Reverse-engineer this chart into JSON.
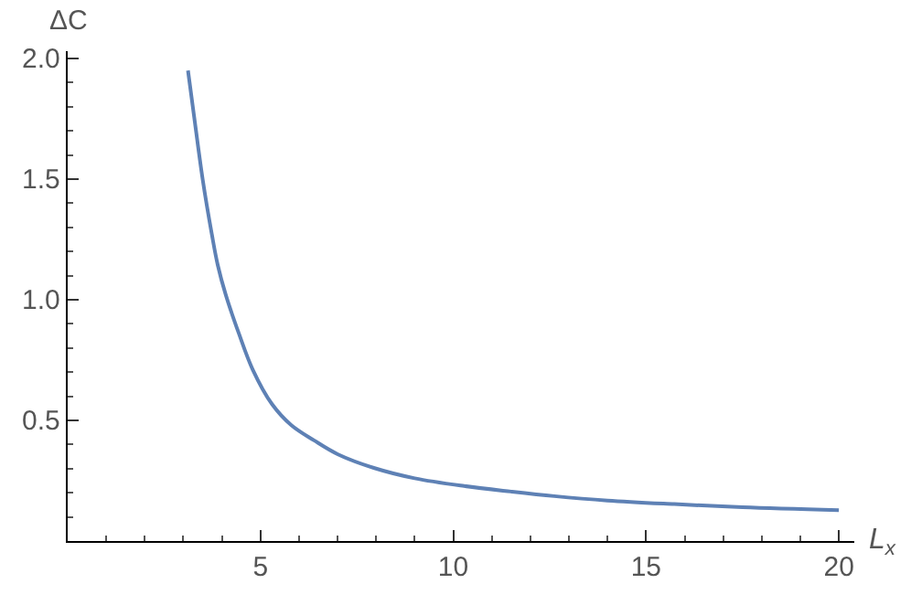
{
  "chart_data": {
    "type": "line",
    "xlabel": "L$_{x}$",
    "ylabel": "ΔC",
    "x": [
      3.12,
      3.27,
      3.5,
      3.74,
      3.89,
      4.1,
      4.44,
      4.8,
      5.3,
      5.8,
      6.39,
      7,
      7.94,
      9,
      10.28,
      11.5,
      12.62,
      14,
      15.73,
      17.5,
      20
    ],
    "series": [
      {
        "color": "#5e81b5",
        "values": [
          1.95,
          1.77,
          1.5,
          1.27,
          1.145,
          1.02,
          0.86,
          0.71,
          0.567,
          0.48,
          0.417,
          0.36,
          0.303,
          0.26,
          0.228,
          0.205,
          0.186,
          0.168,
          0.153,
          0.14,
          0.128
        ]
      }
    ],
    "xlim": [
      0,
      20.4
    ],
    "ylim": [
      0,
      2.03
    ],
    "xticks": [
      5,
      10,
      15,
      20
    ],
    "yticks": [
      0.5,
      {
        "value": 1,
        "label": "1.0"
      },
      1.5,
      {
        "value": 2,
        "label": "2.0"
      }
    ],
    "legend": false,
    "marker": "none",
    "line_style": "solid"
  }
}
